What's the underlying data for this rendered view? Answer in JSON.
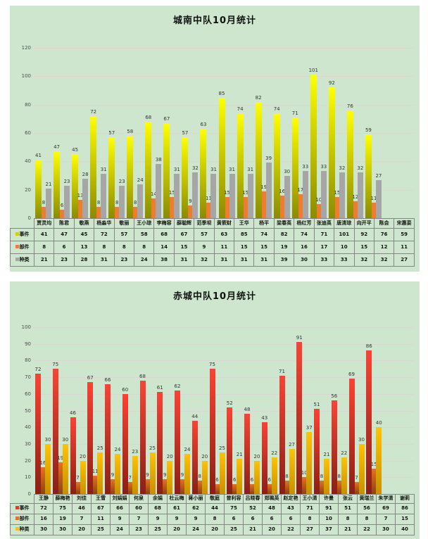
{
  "chart_data": [
    {
      "type": "bar",
      "title": "城南中队10月统计",
      "xlabel": "",
      "ylabel": "",
      "ylim": [
        0,
        120
      ],
      "ystep": 20,
      "grid": true,
      "legend_position": "table-row-headers",
      "categories": [
        "贾灵均",
        "陈君",
        "敬燕",
        "杨淼华",
        "敬丽",
        "王小琼",
        "李梅容",
        "薛聪辉",
        "范季坝",
        "黄筱财",
        "王华",
        "杨平",
        "梁春英",
        "杨红芳",
        "张迪英",
        "唐清琼",
        "向开平",
        "陈会",
        "宋惠娈"
      ],
      "series": [
        {
          "name": "事件",
          "gradient": [
            "#8b8b00",
            "#ffff00"
          ],
          "swatch": "#d6ce00",
          "values": [
            41,
            47,
            45,
            72,
            57,
            58,
            68,
            67,
            57,
            63,
            85,
            74,
            82,
            74,
            71,
            101,
            92,
            76,
            59
          ]
        },
        {
          "name": "部件",
          "color": "#ed7d31",
          "swatch": "#ed7d31",
          "values": [
            8,
            6,
            13,
            8,
            8,
            8,
            14,
            15,
            9,
            11,
            15,
            15,
            19,
            16,
            17,
            10,
            15,
            12,
            11
          ]
        },
        {
          "name": "种类",
          "color": "#a6a6a6",
          "swatch": "#a6a6a6",
          "values": [
            21,
            23,
            28,
            31,
            23,
            24,
            38,
            31,
            32,
            31,
            31,
            31,
            39,
            30,
            33,
            33,
            32,
            32,
            27
          ]
        }
      ]
    },
    {
      "type": "bar",
      "title": "赤城中队10月统计",
      "xlabel": "",
      "ylabel": "",
      "ylim": [
        0,
        100
      ],
      "ystep": 10,
      "grid": true,
      "legend_position": "table-row-headers",
      "categories": [
        "王静",
        "薛梅艳",
        "刘佳",
        "王雪",
        "刘娟娟",
        "何泉",
        "余娟",
        "杜云梅",
        "蒋小丽",
        "敬庭",
        "曾利容",
        "吕晓春",
        "郑珮英",
        "赵定艳",
        "王小清",
        "许曼",
        "张云",
        "黄瑞兰",
        "朱学清",
        "谢莉"
      ],
      "series": [
        {
          "name": "事件",
          "gradient": [
            "#8a1f14",
            "#fb4334"
          ],
          "swatch": "#f0352a",
          "values": [
            72,
            75,
            46,
            67,
            66,
            60,
            68,
            61,
            62,
            44,
            75,
            52,
            48,
            43,
            71,
            91,
            51,
            56,
            69,
            86
          ]
        },
        {
          "name": "部件",
          "gradient": [
            "#8a4510",
            "#e5721f"
          ],
          "swatch": "#e5721f",
          "values": [
            16,
            19,
            7,
            11,
            9,
            7,
            9,
            9,
            9,
            8,
            6,
            6,
            6,
            6,
            8,
            10,
            8,
            8,
            7,
            15
          ]
        },
        {
          "name": "种类",
          "gradient": [
            "#c79100",
            "#ffc203"
          ],
          "swatch": "#ffc000",
          "values": [
            30,
            30,
            20,
            25,
            24,
            23,
            25,
            20,
            24,
            20,
            25,
            21,
            20,
            22,
            27,
            37,
            21,
            22,
            30,
            40
          ]
        }
      ]
    }
  ],
  "colors": {
    "panel_background": "#cde6cd",
    "gridline": "#ddd6d6",
    "page_background": "#ffffff"
  }
}
